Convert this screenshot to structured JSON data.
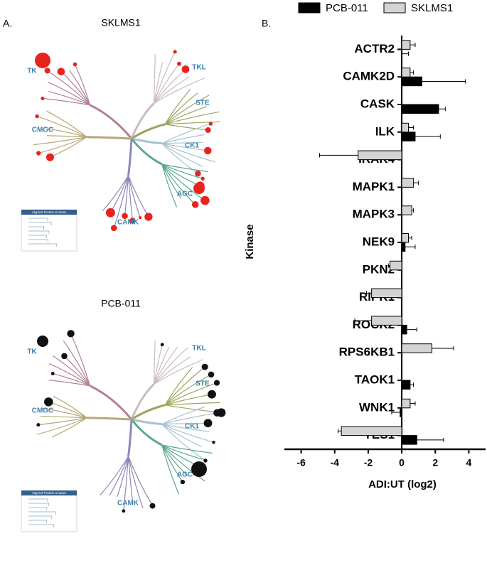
{
  "panel_a": {
    "label": "A.",
    "inset_title": "Atypical Protein Kinases",
    "trees": [
      {
        "title": "SKLMS1",
        "groups": [
          "TK",
          "TKL",
          "STE",
          "CK1",
          "AGC",
          "CAMK",
          "CMGC"
        ]
      },
      {
        "title": "PCB-011",
        "groups": [
          "TK",
          "TKL",
          "STE",
          "CK1",
          "AGC",
          "CAMK",
          "CMGC"
        ]
      }
    ]
  },
  "chart_data": {
    "type": "bar",
    "orientation": "horizontal",
    "panel_label": "B.",
    "x_label": "ADI:UT (log2)",
    "y_label": "Kinase",
    "categories": [
      "ACTR2",
      "CAMK2D",
      "CASK",
      "ILK",
      "IRAK4",
      "MAPK1",
      "MAPK3",
      "NEK9",
      "PKN2",
      "RIPK1",
      "ROCK2",
      "RPS6KB1",
      "TAOK1",
      "WNK1",
      "YES1"
    ],
    "series": [
      {
        "name": "PCB-011",
        "color": "#000000",
        "values": [
          0,
          1.2,
          2.2,
          0.8,
          null,
          null,
          null,
          0.2,
          null,
          null,
          0.3,
          null,
          0.5,
          -0.1,
          0.9
        ],
        "errors": [
          0.4,
          2.6,
          0.4,
          1.5,
          null,
          null,
          null,
          0.6,
          null,
          null,
          0.6,
          null,
          0.2,
          0.5,
          1.6
        ]
      },
      {
        "name": "SKLMS1",
        "color": "#d4d4d4",
        "values": [
          0.5,
          0.5,
          null,
          0.4,
          -2.6,
          0.7,
          0.6,
          0.4,
          -0.7,
          -1.8,
          -1.8,
          1.8,
          null,
          0.5,
          -3.6
        ],
        "errors": [
          0.3,
          0.2,
          null,
          0.3,
          2.3,
          0.3,
          0.1,
          0.2,
          0.1,
          0.3,
          1.0,
          1.3,
          null,
          0.3,
          0.2
        ]
      }
    ],
    "xlim": [
      -7,
      5
    ],
    "xticks": [
      -6,
      -4,
      -2,
      0,
      2,
      4
    ]
  }
}
